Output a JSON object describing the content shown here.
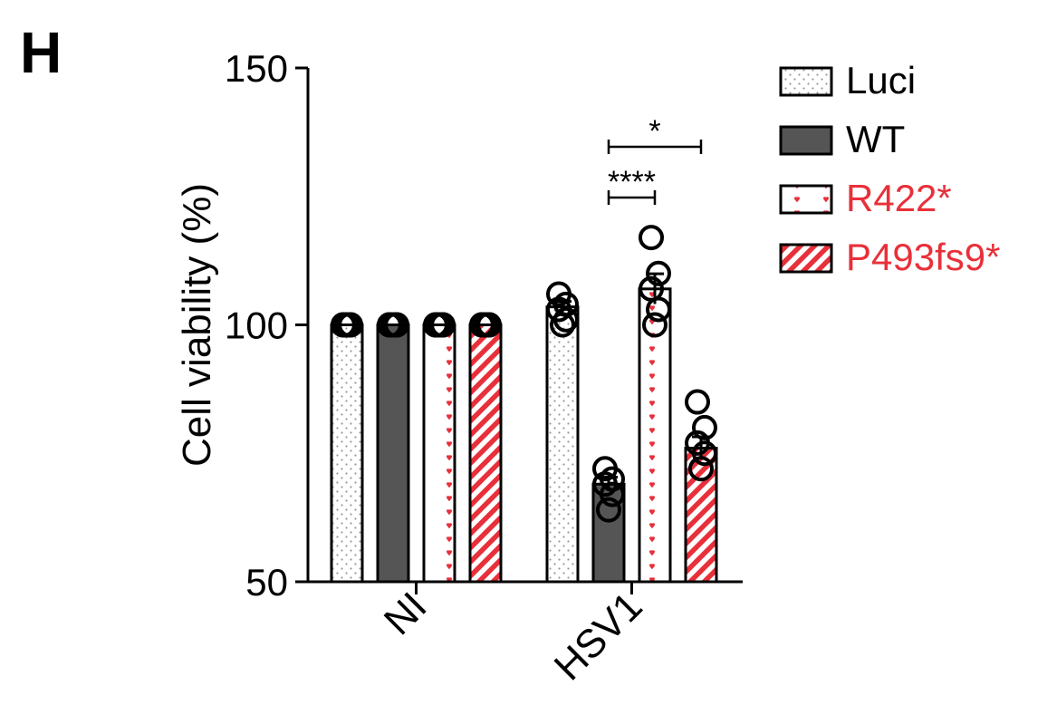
{
  "panel_label": "H",
  "colors": {
    "axis": "#000000",
    "wt_fill": "#555555",
    "mutant_red": "#e8303a",
    "luci_dot": "#9a9a9a"
  },
  "chart_data": {
    "type": "bar",
    "ylabel": "Cell viability (%)",
    "ylim": [
      50,
      150
    ],
    "yticks": [
      50,
      100,
      150
    ],
    "categories": [
      "NI",
      "HSV1"
    ],
    "series": [
      {
        "name": "Luci",
        "pattern": "dots",
        "label_color": "#000000",
        "values": [
          100,
          103.5
        ],
        "points": [
          [
            100,
            100,
            100,
            100,
            100
          ],
          [
            100,
            101,
            103,
            104,
            106
          ]
        ]
      },
      {
        "name": "WT",
        "pattern": "solid",
        "label_color": "#000000",
        "values": [
          100,
          69
        ],
        "points": [
          [
            100,
            100,
            100,
            100,
            100
          ],
          [
            64,
            67,
            69,
            70,
            72
          ]
        ]
      },
      {
        "name": "R422*",
        "pattern": "hearts",
        "label_color": "#e8303a",
        "values": [
          100,
          107
        ],
        "points": [
          [
            100,
            100,
            100,
            100,
            100
          ],
          [
            100,
            103,
            107,
            110,
            117
          ]
        ]
      },
      {
        "name": "P493fs9*",
        "pattern": "stripes",
        "label_color": "#e8303a",
        "values": [
          100,
          76
        ],
        "points": [
          [
            100,
            100,
            100,
            100,
            100
          ],
          [
            72,
            75,
            77,
            80,
            85
          ]
        ]
      }
    ],
    "significance": [
      {
        "group": "HSV1",
        "from": "WT",
        "to": "R422*",
        "label": "****"
      },
      {
        "group": "HSV1",
        "from": "WT",
        "to": "P493fs9*",
        "label": "*"
      }
    ],
    "legend_position": "top-right"
  }
}
